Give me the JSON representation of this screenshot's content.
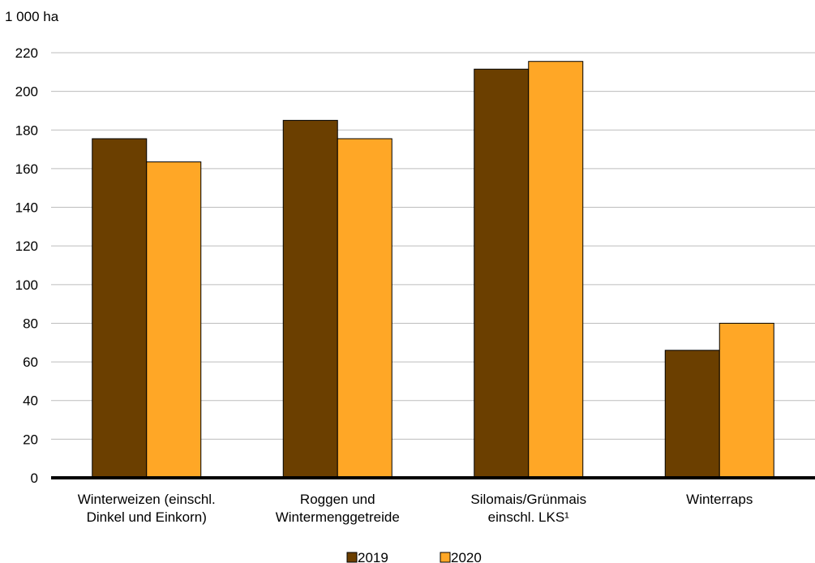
{
  "chart_data": {
    "type": "bar",
    "unit_label": "1 000 ha",
    "categories": [
      [
        "Winterweizen (einschl.",
        "Dinkel und Einkorn)"
      ],
      [
        "Roggen und",
        "Wintermenggetreide"
      ],
      [
        "Silomais/Grünmais",
        "einschl. LKS¹"
      ],
      [
        "Winterraps"
      ]
    ],
    "series": [
      {
        "name": "2019",
        "color": "#6b3f00",
        "values": [
          175.5,
          185,
          211.5,
          66
        ]
      },
      {
        "name": "2020",
        "color": "#ffa726",
        "values": [
          163.5,
          175.5,
          215.5,
          80
        ]
      }
    ],
    "ylim": [
      0,
      220
    ],
    "yticks": [
      0,
      20,
      40,
      60,
      80,
      100,
      120,
      140,
      160,
      180,
      200,
      220
    ],
    "grid": true,
    "legend_position": "bottom-center",
    "xlabel": "",
    "ylabel": ""
  }
}
